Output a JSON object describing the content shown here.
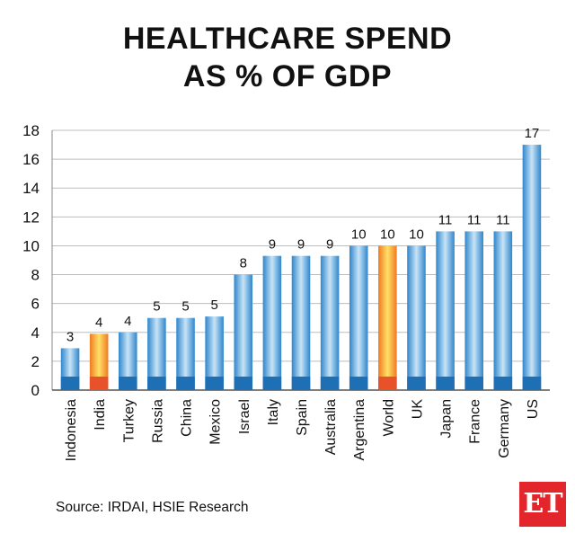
{
  "title_line1": "HEALTHCARE SPEND",
  "title_line2": "AS % OF GDP",
  "source": "Source: IRDAI, HSIE Research",
  "logo_text": "ET",
  "colors": {
    "bar_blue": "#4a9fd8",
    "bar_blue_dark": "#1f6fb5",
    "highlight": "#f5a623",
    "highlight_base": "#e8522a"
  },
  "chart_data": {
    "type": "bar",
    "title": "HEALTHCARE SPEND AS % OF GDP",
    "xlabel": "",
    "ylabel": "",
    "ylim": [
      0,
      18
    ],
    "yticks": [
      0,
      2,
      4,
      6,
      8,
      10,
      12,
      14,
      16,
      18
    ],
    "grid": true,
    "categories": [
      "Indonesia",
      "India",
      "Turkey",
      "Russia",
      "China",
      "Mexico",
      "Israel",
      "Italy",
      "Spain",
      "Australia",
      "Argentina",
      "World",
      "UK",
      "Japan",
      "France",
      "Germany",
      "US"
    ],
    "values": [
      2.9,
      3.9,
      4.0,
      5.0,
      5.0,
      5.1,
      8.0,
      9.3,
      9.3,
      9.3,
      10.0,
      10.0,
      10.0,
      11.0,
      11.0,
      11.0,
      17.0
    ],
    "data_labels": [
      "3",
      "4",
      "4",
      "5",
      "5",
      "5",
      "8",
      "9",
      "9",
      "9",
      "10",
      "10",
      "10",
      "11",
      "11",
      "11",
      "17"
    ],
    "highlighted": [
      "India",
      "World"
    ]
  }
}
